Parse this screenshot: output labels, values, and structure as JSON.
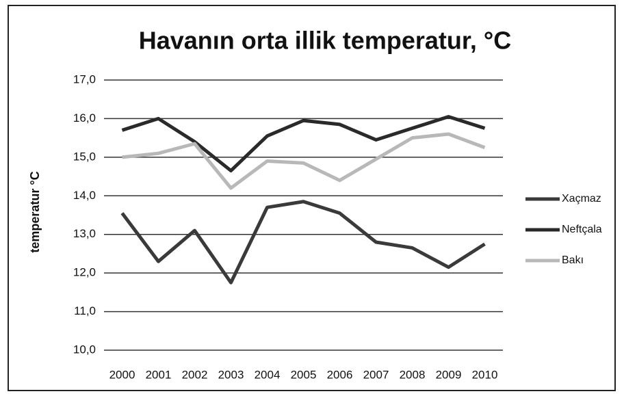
{
  "chart_data": {
    "type": "line",
    "title": "Havanın orta illik temperatur, °C",
    "y_label": "temperatur °C",
    "categories": [
      "2000",
      "2001",
      "2002",
      "2003",
      "2004",
      "2005",
      "2006",
      "2007",
      "2008",
      "2009",
      "2010"
    ],
    "series": [
      {
        "name": "Xaçmaz",
        "color": "#3a3a3a",
        "values": [
          13.55,
          12.3,
          13.1,
          11.75,
          13.7,
          13.85,
          13.55,
          12.8,
          12.65,
          12.15,
          12.75
        ]
      },
      {
        "name": "Neftçala",
        "color": "#2a2a2a",
        "values": [
          15.7,
          16.0,
          15.4,
          14.65,
          15.55,
          15.95,
          15.85,
          15.45,
          15.75,
          16.05,
          15.75
        ]
      },
      {
        "name": "Bakı",
        "color": "#b8b8b8",
        "values": [
          15.0,
          15.1,
          15.35,
          14.2,
          14.9,
          14.85,
          14.4,
          14.95,
          15.5,
          15.6,
          15.25
        ]
      }
    ],
    "ylim": [
      10,
      17
    ],
    "yticks": [
      {
        "value": 10,
        "label": "10,0"
      },
      {
        "value": 11,
        "label": "11,0"
      },
      {
        "value": 12,
        "label": "12,0"
      },
      {
        "value": 13,
        "label": "13,0"
      },
      {
        "value": 14,
        "label": "14,0"
      },
      {
        "value": 15,
        "label": "15,0"
      },
      {
        "value": 16,
        "label": "16,0"
      },
      {
        "value": 17,
        "label": "17,0"
      }
    ],
    "grid": true,
    "legend": "right"
  }
}
